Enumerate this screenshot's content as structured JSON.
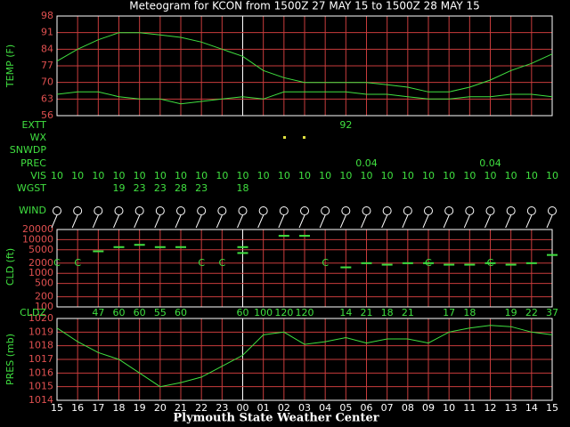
{
  "chart_data": [
    {
      "type": "line",
      "title": "Meteogram for KCON from 1500Z 27 MAY 15 to 1500Z 28 MAY 15",
      "ylabel": "TEMP (F)",
      "ylim": [
        56,
        98
      ],
      "yticks": [
        56,
        63,
        70,
        77,
        84,
        91,
        98
      ],
      "grid": true,
      "color": "#40e040",
      "series": [
        {
          "color": "#40e040",
          "values": [
            79,
            84,
            88,
            91,
            91,
            90,
            89,
            87,
            84,
            81,
            75,
            72,
            70,
            70,
            70,
            70,
            69,
            68,
            66,
            66,
            68,
            71,
            75,
            78,
            82
          ]
        },
        {
          "color": "#40e040",
          "values": [
            65,
            66,
            66,
            64,
            63,
            63,
            61,
            62,
            63,
            64,
            63,
            66,
            66,
            66,
            66,
            65,
            65,
            64,
            63,
            63,
            64,
            64,
            65,
            65,
            64
          ]
        }
      ]
    },
    {
      "type": "scatter",
      "ylabel": "CLD (ft)",
      "log_scale": true,
      "ylim": [
        100,
        20000
      ],
      "yticks": [
        100,
        200,
        500,
        1000,
        2000,
        5000,
        10000,
        20000
      ],
      "grid": true,
      "series": [
        {
          "color": "#40e040",
          "marker_label": "C",
          "values": [
            2000,
            2000,
            null,
            null,
            null,
            null,
            null,
            2000,
            2000,
            null,
            null,
            null,
            null,
            2000,
            null,
            null,
            null,
            null,
            2000,
            null,
            null,
            2000,
            null,
            null,
            null
          ]
        },
        {
          "color": "#40e040",
          "values": [
            null,
            null,
            4500,
            6000,
            7000,
            6000,
            6000,
            null,
            null,
            6000,
            null,
            13000,
            13000,
            null,
            1500,
            2000,
            1800,
            2000,
            2000,
            1800,
            1800,
            2000,
            1800,
            2000,
            3500
          ]
        },
        {
          "color": "#40e040",
          "values": [
            null,
            null,
            null,
            null,
            null,
            null,
            null,
            null,
            null,
            4000,
            null,
            null,
            null,
            null,
            null,
            null,
            null,
            null,
            null,
            null,
            null,
            null,
            null,
            null,
            null
          ]
        }
      ]
    },
    {
      "type": "line",
      "ylabel": "PRES (mb)",
      "ylim": [
        1014,
        1020
      ],
      "yticks": [
        1014,
        1015,
        1016,
        1017,
        1018,
        1019,
        1020
      ],
      "grid": true,
      "categories": [
        "15",
        "16",
        "17",
        "18",
        "19",
        "20",
        "21",
        "22",
        "23",
        "00",
        "01",
        "02",
        "03",
        "04",
        "05",
        "06",
        "07",
        "08",
        "09",
        "10",
        "11",
        "12",
        "13",
        "14",
        "15"
      ],
      "series": [
        {
          "color": "#40e040",
          "values": [
            1019.3,
            1018.3,
            1017.5,
            1017.0,
            1016.0,
            1015.0,
            1015.3,
            1015.7,
            1016.5,
            1017.3,
            1018.8,
            1019.0,
            1018.1,
            1018.3,
            1018.6,
            1018.2,
            1018.5,
            1018.5,
            1018.2,
            1019.0,
            1019.3,
            1019.5,
            1019.4,
            1019.0,
            1018.8
          ]
        }
      ]
    }
  ],
  "rows": [
    {
      "label": "EXTT",
      "values": [
        null,
        null,
        null,
        null,
        null,
        null,
        null,
        null,
        null,
        null,
        null,
        null,
        null,
        null,
        92,
        null,
        null,
        null,
        null,
        null,
        null,
        null,
        null,
        null,
        null
      ]
    },
    {
      "label": "WX"
    },
    {
      "label": "SNWDP"
    },
    {
      "label": "PREC",
      "values": [
        null,
        null,
        null,
        null,
        null,
        null,
        null,
        null,
        null,
        null,
        null,
        null,
        null,
        null,
        null,
        0.04,
        null,
        null,
        null,
        null,
        null,
        0.04,
        null,
        null,
        null
      ]
    },
    {
      "label": "VIS",
      "values": [
        10,
        10,
        10,
        10,
        10,
        10,
        10,
        10,
        10,
        10,
        10,
        10,
        10,
        10,
        10,
        10,
        10,
        10,
        10,
        10,
        10,
        10,
        10,
        10,
        10
      ]
    },
    {
      "label": "WGST",
      "values": [
        null,
        null,
        null,
        19,
        23,
        23,
        28,
        23,
        null,
        18,
        null,
        null,
        null,
        null,
        null,
        null,
        null,
        null,
        null,
        null,
        null,
        null,
        null,
        null,
        null
      ]
    },
    {
      "label": "WIND"
    },
    {
      "label": "CLDZ",
      "values": [
        null,
        null,
        47,
        60,
        60,
        55,
        60,
        null,
        null,
        60,
        100,
        120,
        120,
        null,
        14,
        21,
        18,
        21,
        null,
        17,
        18,
        null,
        19,
        22,
        37
      ]
    }
  ],
  "footer": "Plymouth State Weather Center"
}
